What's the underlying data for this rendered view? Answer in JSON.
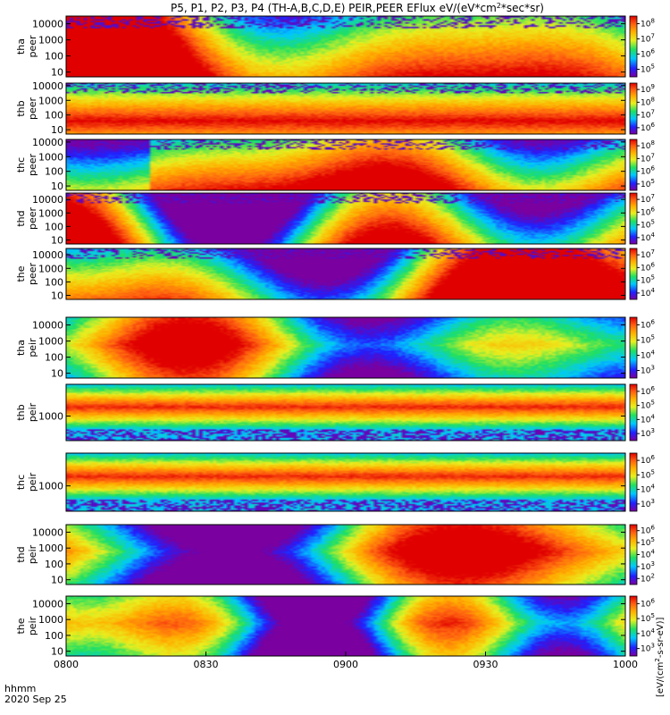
{
  "chart_data": {
    "type": "heatmap",
    "title": "P5, P1, P2, P3, P4 (TH-A,B,C,D,E) PEIR,PEER EFlux eV/(eV*cm^2*sec*sr)",
    "title_parts": {
      "pre": "P5, P1, P2, P3, P4 (TH-A,B,C,D,E) PEIR,PEER EFlux eV/(eV*cm",
      "sup": "2",
      "post": "*sec*sr)"
    },
    "x_axis": {
      "label_line1": "hhmm",
      "label_line2": "2020 Sep 25",
      "range": [
        "0800",
        "1000"
      ],
      "ticks": [
        "0800",
        "0830",
        "0900",
        "0930",
        "1000"
      ]
    },
    "colorbar_label": "[eV/(cm^2-s-sr-eV)]",
    "colorbar_label_parts": {
      "pre": "[eV/(cm",
      "sup": "2",
      "post": "-s-sr-eV)]"
    },
    "colormap": [
      "#7a00a0",
      "#2020ff",
      "#00c8ff",
      "#20e060",
      "#e8f020",
      "#ffb000",
      "#ff6010",
      "#e00000"
    ],
    "panels": [
      {
        "probe": "tha",
        "instrument": "peer",
        "y_label_1": "tha",
        "y_label_2": "peer",
        "y_range": [
          5,
          30000
        ],
        "y_scale": "log",
        "y_ticks": [
          "10",
          "100",
          "1000",
          "10000"
        ],
        "cb_ticks": [
          {
            "b": "10",
            "e": "5"
          },
          {
            "b": "10",
            "e": "6"
          },
          {
            "b": "10",
            "e": "7"
          },
          {
            "b": "10",
            "e": "8"
          }
        ]
      },
      {
        "probe": "thb",
        "instrument": "peer",
        "y_label_1": "thb",
        "y_label_2": "peer",
        "y_range": [
          5,
          15000
        ],
        "y_scale": "log",
        "y_ticks": [
          "10",
          "100",
          "1000",
          "10000"
        ],
        "cb_ticks": [
          {
            "b": "10",
            "e": "6"
          },
          {
            "b": "10",
            "e": "7"
          },
          {
            "b": "10",
            "e": "8"
          },
          {
            "b": "10",
            "e": "9"
          }
        ]
      },
      {
        "probe": "thc",
        "instrument": "peer",
        "y_label_1": "thc",
        "y_label_2": "peer",
        "y_range": [
          5,
          15000
        ],
        "y_scale": "log",
        "y_ticks": [
          "10",
          "100",
          "1000",
          "10000"
        ],
        "cb_ticks": [
          {
            "b": "10",
            "e": "5"
          },
          {
            "b": "10",
            "e": "6"
          },
          {
            "b": "10",
            "e": "7"
          },
          {
            "b": "10",
            "e": "8"
          }
        ]
      },
      {
        "probe": "thd",
        "instrument": "peer",
        "y_label_1": "thd",
        "y_label_2": "peer",
        "y_range": [
          5,
          30000
        ],
        "y_scale": "log",
        "y_ticks": [
          "10",
          "100",
          "1000",
          "10000"
        ],
        "cb_ticks": [
          {
            "b": "10",
            "e": "4"
          },
          {
            "b": "10",
            "e": "5"
          },
          {
            "b": "10",
            "e": "6"
          },
          {
            "b": "10",
            "e": "7"
          }
        ]
      },
      {
        "probe": "the",
        "instrument": "peer",
        "y_label_1": "the",
        "y_label_2": "peer",
        "y_range": [
          5,
          30000
        ],
        "y_scale": "log",
        "y_ticks": [
          "10",
          "100",
          "1000",
          "10000"
        ],
        "cb_ticks": [
          {
            "b": "10",
            "e": "4"
          },
          {
            "b": "10",
            "e": "5"
          },
          {
            "b": "10",
            "e": "6"
          },
          {
            "b": "10",
            "e": "7"
          }
        ]
      },
      {
        "probe": "tha",
        "instrument": "peir",
        "y_label_1": "tha",
        "y_label_2": "peir",
        "y_range": [
          5,
          30000
        ],
        "y_scale": "log",
        "y_ticks": [
          "10",
          "100",
          "1000",
          "10000"
        ],
        "cb_ticks": [
          {
            "b": "10",
            "e": "3"
          },
          {
            "b": "10",
            "e": "4"
          },
          {
            "b": "10",
            "e": "5"
          },
          {
            "b": "10",
            "e": "6"
          }
        ]
      },
      {
        "probe": "thb",
        "instrument": "peir",
        "y_label_1": "thb",
        "y_label_2": "peir",
        "y_range": [
          200,
          8000
        ],
        "y_scale": "log",
        "y_ticks": [
          "1000"
        ],
        "cb_ticks": [
          {
            "b": "10",
            "e": "3"
          },
          {
            "b": "10",
            "e": "4"
          },
          {
            "b": "10",
            "e": "5"
          },
          {
            "b": "10",
            "e": "6"
          }
        ]
      },
      {
        "probe": "thc",
        "instrument": "peir",
        "y_label_1": "thc",
        "y_label_2": "peir",
        "y_range": [
          200,
          8000
        ],
        "y_scale": "log",
        "y_ticks": [
          "1000"
        ],
        "cb_ticks": [
          {
            "b": "10",
            "e": "3"
          },
          {
            "b": "10",
            "e": "4"
          },
          {
            "b": "10",
            "e": "5"
          },
          {
            "b": "10",
            "e": "6"
          }
        ]
      },
      {
        "probe": "thd",
        "instrument": "peir",
        "y_label_1": "thd",
        "y_label_2": "peir",
        "y_range": [
          5,
          30000
        ],
        "y_scale": "log",
        "y_ticks": [
          "10",
          "100",
          "1000",
          "10000"
        ],
        "cb_ticks": [
          {
            "b": "10",
            "e": "2"
          },
          {
            "b": "10",
            "e": "3"
          },
          {
            "b": "10",
            "e": "4"
          },
          {
            "b": "10",
            "e": "5"
          },
          {
            "b": "10",
            "e": "6"
          }
        ]
      },
      {
        "probe": "the",
        "instrument": "peir",
        "y_label_1": "the",
        "y_label_2": "peir",
        "y_range": [
          5,
          30000
        ],
        "y_scale": "log",
        "y_ticks": [
          "10",
          "100",
          "1000",
          "10000"
        ],
        "cb_ticks": [
          {
            "b": "10",
            "e": "3"
          },
          {
            "b": "10",
            "e": "4"
          },
          {
            "b": "10",
            "e": "5"
          },
          {
            "b": "10",
            "e": "6"
          }
        ]
      }
    ]
  }
}
